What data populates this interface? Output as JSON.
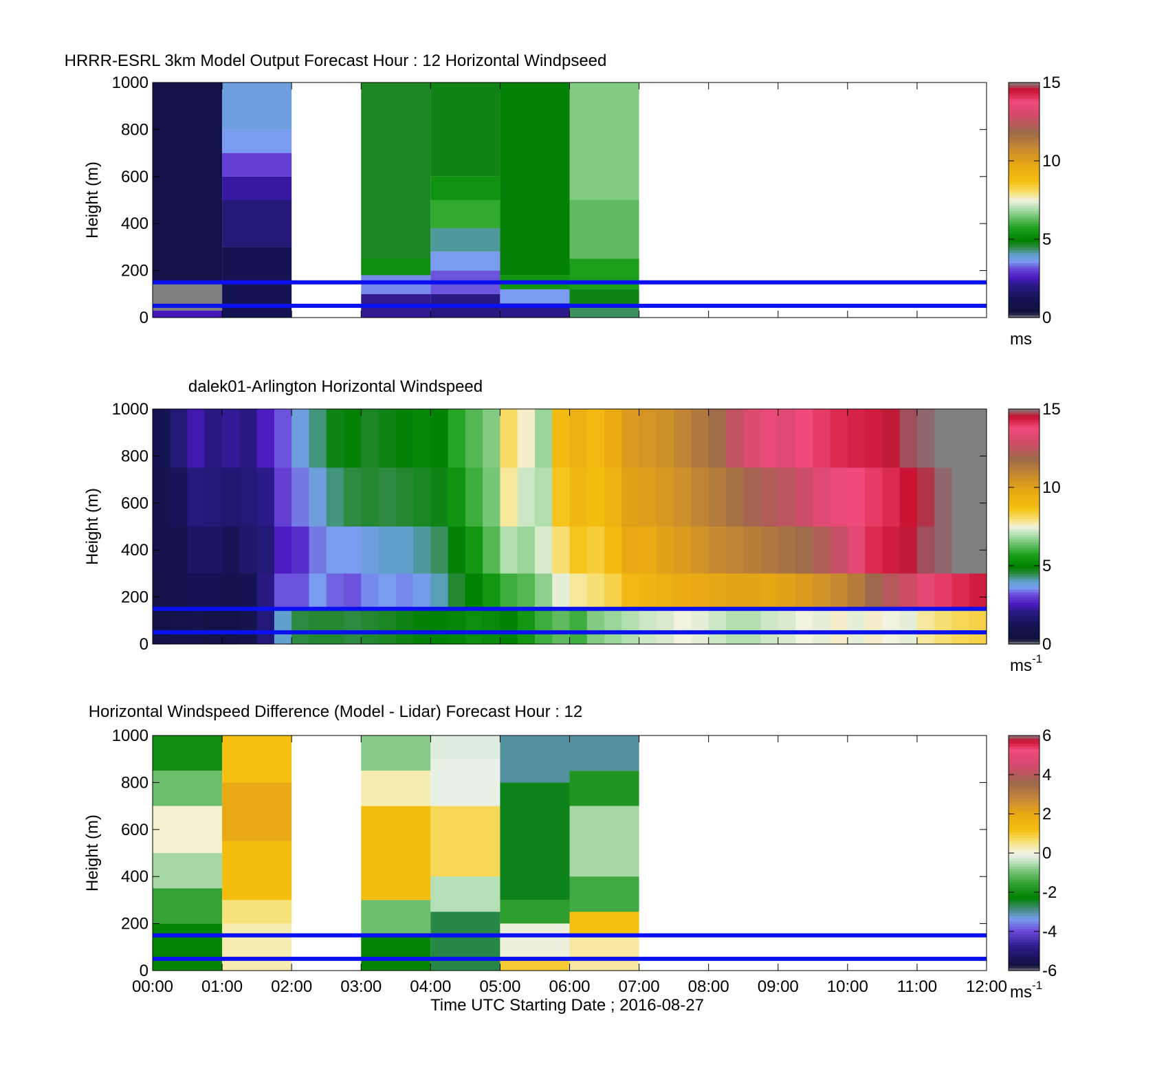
{
  "chart_data": [
    {
      "type": "heatmap",
      "title": "HRRR-ESRL 3km Model Output   Forecast Hour : 12 Horizontal Windpseed",
      "ylabel": "Height (m)",
      "ylim": [
        0,
        1000
      ],
      "yticks": [
        "0",
        "200",
        "400",
        "600",
        "800",
        "1000"
      ],
      "xlim_hours": [
        0,
        12
      ],
      "xticks_shown": false,
      "colorbar": {
        "range": [
          0,
          15
        ],
        "ticks": [
          "0",
          "5",
          "10",
          "15"
        ],
        "unit": "ms",
        "unit_sup": ""
      },
      "reference_lines_m": [
        150,
        50
      ],
      "columns": [
        {
          "start_hour": 0,
          "bands": [
            {
              "bottom": 1000,
              "top": 150,
              "value": 0.9
            },
            {
              "bottom": 150,
              "top": 30,
              "value": -1
            },
            {
              "bottom": 30,
              "top": 0,
              "value": 2.5
            }
          ]
        },
        {
          "start_hour": 1,
          "bands": [
            {
              "bottom": 1000,
              "top": 800,
              "value": 3.8
            },
            {
              "bottom": 800,
              "top": 700,
              "value": 3.6
            },
            {
              "bottom": 700,
              "top": 600,
              "value": 3.0
            },
            {
              "bottom": 600,
              "top": 500,
              "value": 2.3
            },
            {
              "bottom": 500,
              "top": 300,
              "value": 1.8
            },
            {
              "bottom": 300,
              "top": 0,
              "value": 1.2
            }
          ]
        },
        {
          "start_hour": 2,
          "bands": []
        },
        {
          "start_hour": 3,
          "bands": [
            {
              "bottom": 1000,
              "top": 250,
              "value": 4.7
            },
            {
              "bottom": 250,
              "top": 180,
              "value": 5.3
            },
            {
              "bottom": 180,
              "top": 100,
              "value": 3.5
            },
            {
              "bottom": 100,
              "top": 0,
              "value": 2.2
            }
          ]
        },
        {
          "start_hour": 4,
          "bands": [
            {
              "bottom": 1000,
              "top": 600,
              "value": 4.8
            },
            {
              "bottom": 600,
              "top": 500,
              "value": 5.4
            },
            {
              "bottom": 500,
              "top": 380,
              "value": 5.9
            },
            {
              "bottom": 380,
              "top": 280,
              "value": 4.2
            },
            {
              "bottom": 280,
              "top": 200,
              "value": 3.6
            },
            {
              "bottom": 200,
              "top": 100,
              "value": 3.2
            },
            {
              "bottom": 100,
              "top": 0,
              "value": 2.0
            }
          ]
        },
        {
          "start_hour": 5,
          "bands": [
            {
              "bottom": 1000,
              "top": 180,
              "value": 4.9
            },
            {
              "bottom": 180,
              "top": 120,
              "value": 5.5
            },
            {
              "bottom": 120,
              "top": 60,
              "value": 3.6
            },
            {
              "bottom": 60,
              "top": 0,
              "value": 2.1
            }
          ]
        },
        {
          "start_hour": 6,
          "bands": [
            {
              "bottom": 1000,
              "top": 500,
              "value": 6.6
            },
            {
              "bottom": 500,
              "top": 250,
              "value": 6.3
            },
            {
              "bottom": 250,
              "top": 120,
              "value": 5.7
            },
            {
              "bottom": 120,
              "top": 40,
              "value": 4.8
            },
            {
              "bottom": 40,
              "top": 0,
              "value": 4.4
            }
          ]
        }
      ]
    },
    {
      "type": "heatmap",
      "title": "dalek01-Arlington  Horizontal Windspeed",
      "ylabel": "Height (m)",
      "ylim": [
        0,
        1000
      ],
      "yticks": [
        "0",
        "200",
        "400",
        "600",
        "800",
        "1000"
      ],
      "xlim_hours": [
        0,
        12
      ],
      "xticks_shown": false,
      "colorbar": {
        "range": [
          0,
          15
        ],
        "ticks": [
          "0",
          "5",
          "10",
          "15"
        ],
        "unit": "ms",
        "unit_sup": "-1"
      },
      "reference_lines_m": [
        150,
        50
      ],
      "columns_every_hours": 0.25,
      "columns": [
        [
          1.2,
          1.1,
          1.0,
          0.9,
          0.8
        ],
        [
          1.8,
          1.3,
          1.1,
          1.0,
          0.9
        ],
        [
          2.4,
          1.9,
          1.5,
          1.2,
          1.0
        ],
        [
          2.0,
          1.8,
          1.5,
          1.2,
          0.8
        ],
        [
          2.2,
          1.7,
          1.3,
          1.0,
          0.8
        ],
        [
          2.0,
          1.8,
          1.6,
          1.2,
          1.0
        ],
        [
          2.6,
          2.1,
          1.8,
          2.0,
          1.8
        ],
        [
          3.2,
          3.0,
          2.6,
          3.2,
          4.0
        ],
        [
          3.8,
          3.4,
          2.8,
          3.2,
          4.5
        ],
        [
          4.3,
          3.8,
          3.4,
          3.6,
          4.6
        ],
        [
          4.8,
          4.3,
          3.6,
          3.3,
          4.6
        ],
        [
          4.9,
          4.5,
          3.6,
          3.2,
          4.5
        ],
        [
          4.7,
          4.6,
          3.8,
          3.5,
          4.6
        ],
        [
          4.8,
          4.5,
          4.0,
          3.6,
          4.7
        ],
        [
          4.9,
          4.6,
          4.0,
          3.5,
          4.8
        ],
        [
          5.1,
          4.7,
          4.2,
          3.7,
          4.9
        ],
        [
          5.0,
          4.8,
          4.4,
          4.1,
          5.0
        ],
        [
          5.8,
          5.4,
          4.9,
          4.6,
          5.1
        ],
        [
          6.2,
          6.0,
          5.5,
          5.0,
          5.3
        ],
        [
          6.6,
          6.5,
          6.2,
          5.5,
          5.2
        ],
        [
          8.1,
          7.8,
          7.0,
          6.0,
          5.0
        ],
        [
          7.6,
          7.2,
          6.8,
          6.2,
          5.5
        ],
        [
          6.8,
          7.0,
          7.3,
          6.7,
          6.0
        ],
        [
          8.9,
          8.6,
          8.0,
          7.4,
          6.3
        ],
        [
          9.4,
          9.1,
          8.6,
          7.8,
          6.0
        ],
        [
          9.0,
          8.8,
          8.4,
          8.0,
          6.6
        ],
        [
          9.6,
          9.3,
          8.9,
          8.3,
          6.8
        ],
        [
          10.2,
          10.0,
          9.7,
          9.0,
          7.0
        ],
        [
          10.4,
          10.1,
          9.6,
          9.2,
          7.2
        ],
        [
          10.6,
          10.3,
          10.0,
          9.4,
          7.3
        ],
        [
          11.0,
          10.6,
          10.2,
          9.6,
          7.5
        ],
        [
          11.4,
          11.0,
          10.5,
          9.7,
          7.4
        ],
        [
          11.8,
          11.3,
          10.8,
          9.8,
          7.2
        ],
        [
          12.6,
          11.6,
          11.0,
          9.9,
          7.0
        ],
        [
          13.2,
          12.0,
          11.2,
          9.9,
          7.0
        ],
        [
          13.6,
          12.3,
          11.4,
          9.8,
          7.2
        ],
        [
          13.3,
          12.5,
          11.6,
          10.0,
          7.3
        ],
        [
          13.8,
          12.8,
          11.8,
          10.2,
          7.5
        ],
        [
          14.0,
          13.3,
          12.2,
          10.5,
          7.4
        ],
        [
          14.2,
          13.6,
          12.7,
          10.8,
          7.6
        ],
        [
          14.3,
          13.8,
          13.4,
          11.3,
          7.4
        ],
        [
          14.4,
          14.0,
          14.2,
          11.9,
          7.6
        ],
        [
          14.6,
          14.2,
          14.4,
          12.4,
          7.5
        ],
        [
          14.8,
          14.5,
          14.6,
          12.8,
          7.4
        ],
        [
          14.9,
          14.7,
          14.8,
          13.4,
          7.8
        ],
        [
          15.0,
          14.9,
          14.9,
          14.0,
          8.0
        ],
        [
          15.0,
          15.0,
          15.0,
          14.2,
          8.2
        ],
        [
          15.0,
          15.0,
          15.0,
          14.4,
          8.3
        ]
      ],
      "column_band_heights_m": [
        1000,
        750,
        500,
        300,
        150,
        0
      ]
    },
    {
      "type": "heatmap",
      "title": "Horizontal Windspeed Difference (Model - Lidar) Forecast Hour : 12",
      "xlabel": "Time UTC  Starting Date ; 2016-08-27",
      "ylabel": "Height (m)",
      "ylim": [
        0,
        1000
      ],
      "yticks": [
        "0",
        "200",
        "400",
        "600",
        "800",
        "1000"
      ],
      "xlim_hours": [
        0,
        12
      ],
      "xticks": [
        "00:00",
        "01:00",
        "02:00",
        "03:00",
        "04:00",
        "05:00",
        "06:00",
        "07:00",
        "08:00",
        "09:00",
        "10:00",
        "11:00",
        "12:00"
      ],
      "colorbar": {
        "range": [
          -6,
          6
        ],
        "ticks": [
          "-6",
          "-4",
          "-2",
          "0",
          "2",
          "4",
          "6"
        ],
        "unit": "ms",
        "unit_sup": "-1"
      },
      "reference_lines_m": [
        150,
        50
      ],
      "columns": [
        {
          "start_hour": 0,
          "bands": [
            {
              "bottom": 1000,
              "top": 850,
              "value": -2.0
            },
            {
              "bottom": 850,
              "top": 700,
              "value": -1.0
            },
            {
              "bottom": 700,
              "top": 500,
              "value": 0.1
            },
            {
              "bottom": 500,
              "top": 350,
              "value": -0.6
            },
            {
              "bottom": 350,
              "top": 200,
              "value": -1.5
            },
            {
              "bottom": 200,
              "top": 0,
              "value": -2.2
            }
          ]
        },
        {
          "start_hour": 1,
          "bands": [
            {
              "bottom": 1000,
              "top": 800,
              "value": 1.2
            },
            {
              "bottom": 800,
              "top": 550,
              "value": 2.0
            },
            {
              "bottom": 550,
              "top": 300,
              "value": 1.3
            },
            {
              "bottom": 300,
              "top": 200,
              "value": 0.6
            },
            {
              "bottom": 200,
              "top": 0,
              "value": 0.3
            }
          ]
        },
        {
          "start_hour": 2,
          "bands": []
        },
        {
          "start_hour": 3,
          "bands": [
            {
              "bottom": 1000,
              "top": 850,
              "value": -0.8
            },
            {
              "bottom": 850,
              "top": 700,
              "value": 0.3
            },
            {
              "bottom": 700,
              "top": 300,
              "value": 1.3
            },
            {
              "bottom": 300,
              "top": 150,
              "value": -1.0
            },
            {
              "bottom": 150,
              "top": 0,
              "value": -2.2
            }
          ]
        },
        {
          "start_hour": 4,
          "bands": [
            {
              "bottom": 1000,
              "top": 900,
              "value": -0.2
            },
            {
              "bottom": 900,
              "top": 700,
              "value": -0.1
            },
            {
              "bottom": 700,
              "top": 400,
              "value": 0.8
            },
            {
              "bottom": 400,
              "top": 250,
              "value": -0.5
            },
            {
              "bottom": 250,
              "top": 0,
              "value": -2.6
            }
          ]
        },
        {
          "start_hour": 5,
          "bands": [
            {
              "bottom": 1000,
              "top": 800,
              "value": -3.0
            },
            {
              "bottom": 800,
              "top": 300,
              "value": -2.4
            },
            {
              "bottom": 300,
              "top": 200,
              "value": -1.6
            },
            {
              "bottom": 200,
              "top": 50,
              "value": 0.0
            },
            {
              "bottom": 50,
              "top": 0,
              "value": 1.0
            }
          ]
        },
        {
          "start_hour": 6,
          "bands": [
            {
              "bottom": 1000,
              "top": 850,
              "value": -3.0
            },
            {
              "bottom": 850,
              "top": 700,
              "value": -1.8
            },
            {
              "bottom": 700,
              "top": 400,
              "value": -0.6
            },
            {
              "bottom": 400,
              "top": 250,
              "value": -1.4
            },
            {
              "bottom": 250,
              "top": 150,
              "value": 1.2
            },
            {
              "bottom": 150,
              "top": 0,
              "value": 0.4
            }
          ]
        }
      ]
    }
  ]
}
